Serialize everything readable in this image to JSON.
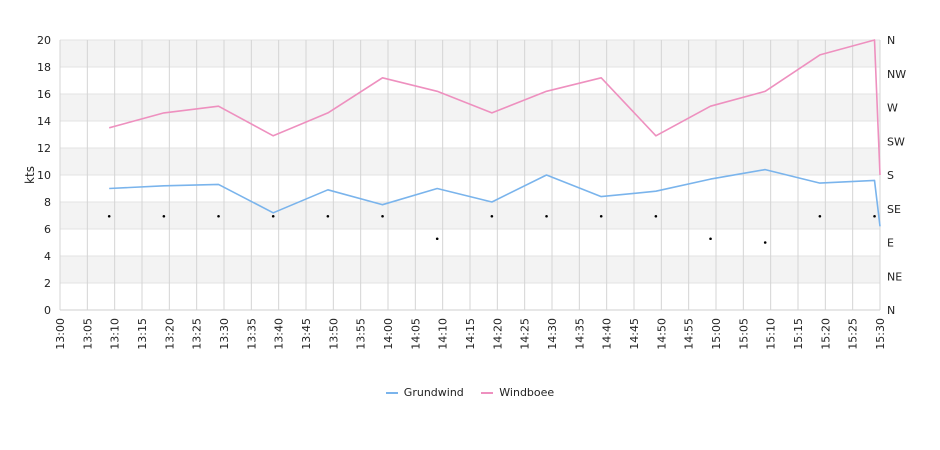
{
  "chart_data": {
    "type": "line",
    "ylabel": "kts",
    "ylim": [
      0,
      20
    ],
    "y_ticks": [
      "0",
      "2",
      "4",
      "6",
      "8",
      "10",
      "12",
      "14",
      "16",
      "18",
      "20"
    ],
    "direction_ticks": [
      "N",
      "NE",
      "E",
      "SE",
      "S",
      "SW",
      "W",
      "NW",
      "N"
    ],
    "x_ticks": [
      "13:00",
      "13:05",
      "13:10",
      "13:15",
      "13:20",
      "13:25",
      "13:30",
      "13:35",
      "13:40",
      "13:45",
      "13:50",
      "13:55",
      "14:00",
      "14:05",
      "14:10",
      "14:15",
      "14:20",
      "14:25",
      "14:30",
      "14:35",
      "14:40",
      "14:45",
      "14:50",
      "14:55",
      "15:00",
      "15:05",
      "15:10",
      "15:15",
      "15:20",
      "15:25",
      "15:30"
    ],
    "x": [
      "13:09",
      "13:19",
      "13:29",
      "13:39",
      "13:49",
      "13:59",
      "14:09",
      "14:19",
      "14:29",
      "14:39",
      "14:49",
      "14:59",
      "15:09",
      "15:19",
      "15:29",
      "15:30"
    ],
    "series": [
      {
        "name": "Grundwind",
        "color": "#7ab4ec",
        "values": [
          9.0,
          9.2,
          9.3,
          7.2,
          8.9,
          7.8,
          9.0,
          8.0,
          10.0,
          8.4,
          8.8,
          9.7,
          10.4,
          9.4,
          9.6,
          6.2
        ]
      },
      {
        "name": "Windboee",
        "color": "#ee90bf",
        "values": [
          13.5,
          14.6,
          15.1,
          12.9,
          14.6,
          17.2,
          16.2,
          14.6,
          16.2,
          17.2,
          12.9,
          15.1,
          16.2,
          18.9,
          20.0,
          10.0
        ]
      }
    ],
    "direction": {
      "x": [
        "13:09",
        "13:19",
        "13:29",
        "13:39",
        "13:49",
        "13:59",
        "14:09",
        "14:19",
        "14:29",
        "14:39",
        "14:49",
        "14:59",
        "15:09",
        "15:19",
        "15:29"
      ],
      "values": [
        "SE",
        "SE",
        "SE",
        "SE",
        "SE",
        "SE",
        "SE",
        "SE",
        "SE",
        "SE",
        "SE",
        "SE",
        "E",
        "SE",
        "SE"
      ],
      "offsets_deg": [
        10,
        10,
        10,
        10,
        10,
        10,
        40,
        10,
        10,
        10,
        10,
        40,
        0,
        10,
        10
      ]
    },
    "grid": true,
    "legend": "bottom"
  }
}
